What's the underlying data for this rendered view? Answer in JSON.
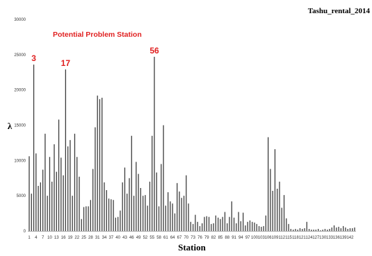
{
  "chart_data": {
    "type": "bar",
    "title": "Tashu_rental_2014",
    "subtitle": "Potential Problem Station",
    "xlabel": "Station",
    "ylabel": "λ",
    "ylim": [
      0,
      30000
    ],
    "yticks": [
      "0",
      "5000",
      "10000",
      "15000",
      "20000",
      "25000",
      "30000"
    ],
    "xtick_labels": [
      "1",
      "4",
      "7",
      "10",
      "13",
      "16",
      "19",
      "22",
      "25",
      "28",
      "31",
      "34",
      "37",
      "40",
      "43",
      "46",
      "49",
      "52",
      "55",
      "58",
      "61",
      "64",
      "67",
      "70",
      "73",
      "76",
      "79",
      "82",
      "85",
      "88",
      "91",
      "94",
      "97",
      "100",
      "103",
      "106",
      "109",
      "112",
      "115",
      "118",
      "121",
      "124",
      "127",
      "130",
      "133",
      "136",
      "139",
      "142"
    ],
    "grid": false,
    "legend": "none",
    "bar_color": "#3b3b3b",
    "annotation_color": "#e02020",
    "annotations": [
      {
        "label": "3",
        "station": 3
      },
      {
        "label": "17",
        "station": 17
      },
      {
        "label": "56",
        "station": 56
      }
    ],
    "stations": [
      1,
      2,
      3,
      4,
      5,
      6,
      7,
      8,
      9,
      10,
      11,
      12,
      13,
      14,
      15,
      16,
      17,
      18,
      19,
      20,
      21,
      22,
      23,
      24,
      25,
      26,
      27,
      28,
      29,
      30,
      31,
      32,
      33,
      34,
      35,
      36,
      37,
      38,
      39,
      40,
      41,
      42,
      43,
      44,
      45,
      46,
      47,
      48,
      49,
      50,
      51,
      52,
      53,
      54,
      55,
      56,
      57,
      58,
      59,
      60,
      61,
      62,
      63,
      64,
      65,
      66,
      67,
      68,
      69,
      70,
      71,
      72,
      73,
      74,
      75,
      76,
      77,
      78,
      79,
      80,
      81,
      82,
      83,
      84,
      85,
      86,
      87,
      88,
      89,
      90,
      91,
      92,
      93,
      94,
      95,
      96,
      97,
      98,
      99,
      100,
      101,
      102,
      103,
      104,
      105,
      106,
      107,
      108,
      109,
      110,
      111,
      112,
      113,
      114,
      115,
      116,
      117,
      118,
      119,
      120,
      121,
      122,
      123,
      124,
      125,
      126,
      127,
      128,
      129,
      130,
      131,
      132,
      133,
      134,
      135,
      136,
      137,
      138,
      139,
      140,
      141,
      142,
      143,
      144
    ],
    "values": [
      10600,
      5300,
      23600,
      11000,
      6400,
      6900,
      8700,
      13800,
      5000,
      10500,
      7000,
      12300,
      8400,
      15800,
      10400,
      7900,
      22900,
      12000,
      12900,
      5000,
      13800,
      10500,
      7700,
      1700,
      3400,
      3500,
      3500,
      4400,
      8800,
      14700,
      19200,
      18700,
      18900,
      6900,
      5800,
      4600,
      4500,
      4400,
      1900,
      2000,
      2900,
      6900,
      9000,
      5300,
      7500,
      13500,
      5000,
      9800,
      8100,
      6100,
      5000,
      5100,
      3600,
      7000,
      13500,
      24700,
      8300,
      3500,
      9500,
      15000,
      3600,
      5500,
      4200,
      3900,
      2500,
      6800,
      5600,
      4700,
      5000,
      7900,
      3900,
      1300,
      1000,
      2300,
      1300,
      700,
      1100,
      2000,
      2100,
      2000,
      1000,
      1100,
      2200,
      1900,
      1700,
      2000,
      2700,
      1100,
      2000,
      4200,
      1900,
      1100,
      2700,
      1400,
      2600,
      800,
      1300,
      1500,
      1300,
      1200,
      1000,
      700,
      600,
      700,
      2200,
      13300,
      8800,
      5700,
      11600,
      6000,
      7000,
      3300,
      5100,
      1800,
      1000,
      300,
      200,
      300,
      200,
      400,
      300,
      400,
      1300,
      300,
      200,
      200,
      200,
      300,
      100,
      200,
      300,
      200,
      300,
      500,
      800,
      500,
      600,
      400,
      700,
      500,
      300,
      400,
      400,
      500
    ]
  }
}
